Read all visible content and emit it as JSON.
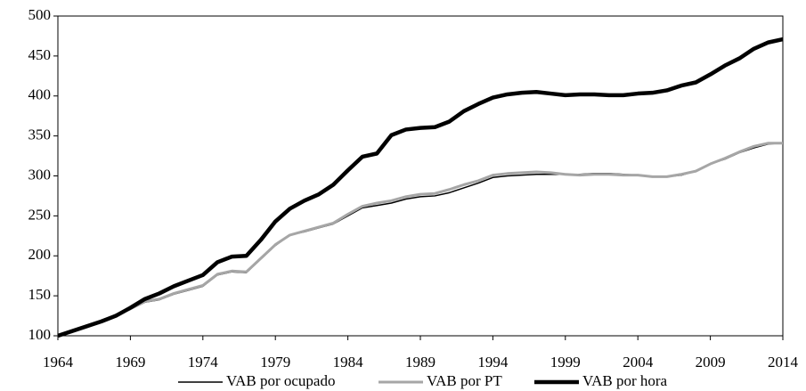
{
  "chart_data": {
    "type": "line",
    "x": [
      1964,
      1965,
      1966,
      1967,
      1968,
      1969,
      1970,
      1971,
      1972,
      1973,
      1974,
      1975,
      1976,
      1977,
      1978,
      1979,
      1980,
      1981,
      1982,
      1983,
      1984,
      1985,
      1986,
      1987,
      1988,
      1989,
      1990,
      1991,
      1992,
      1993,
      1994,
      1995,
      1996,
      1997,
      1998,
      1999,
      2000,
      2001,
      2002,
      2003,
      2004,
      2005,
      2006,
      2007,
      2008,
      2009,
      2010,
      2011,
      2012,
      2013,
      2014
    ],
    "series": [
      {
        "name": "VAB por ocupado",
        "color": "#000000",
        "width": 1.5,
        "values": [
          100,
          105,
          111,
          117,
          125,
          133,
          142,
          145,
          152,
          157,
          162,
          176,
          180,
          179,
          196,
          213,
          226,
          230,
          235,
          240,
          250,
          260,
          263,
          266,
          271,
          274,
          275,
          279,
          285,
          291,
          298,
          300,
          301,
          302,
          302,
          302,
          302,
          303,
          303,
          302,
          301,
          299,
          299,
          301,
          306,
          315,
          321,
          329,
          335,
          340,
          341
        ]
      },
      {
        "name": "VAB por PT",
        "color": "#a6a6a6",
        "width": 3,
        "values": [
          100,
          105,
          111,
          118,
          126,
          134,
          143,
          146,
          153,
          158,
          163,
          177,
          181,
          180,
          197,
          214,
          226,
          231,
          236,
          241,
          252,
          262,
          266,
          269,
          274,
          277,
          278,
          283,
          289,
          294,
          301,
          303,
          304,
          305,
          304,
          302,
          301,
          302,
          302,
          301,
          301,
          299,
          299,
          302,
          306,
          315,
          322,
          330,
          337,
          341,
          341
        ]
      },
      {
        "name": "VAB por hora",
        "color": "#000000",
        "width": 4.5,
        "values": [
          100,
          106,
          112,
          118,
          125,
          135,
          146,
          153,
          162,
          169,
          176,
          192,
          199,
          200,
          220,
          243,
          259,
          269,
          277,
          289,
          307,
          324,
          328,
          351,
          358,
          360,
          361,
          368,
          381,
          390,
          398,
          402,
          404,
          405,
          403,
          401,
          402,
          402,
          401,
          401,
          403,
          404,
          407,
          413,
          417,
          427,
          438,
          447,
          459,
          467,
          471
        ]
      }
    ],
    "xlim": [
      1964,
      2014
    ],
    "xticks": [
      1964,
      1969,
      1974,
      1979,
      1984,
      1989,
      1994,
      1999,
      2004,
      2009,
      2014
    ],
    "ylim": [
      100,
      500
    ],
    "yticks": [
      100,
      150,
      200,
      250,
      300,
      350,
      400,
      450,
      500
    ],
    "grid": false,
    "legend": "bottom"
  }
}
